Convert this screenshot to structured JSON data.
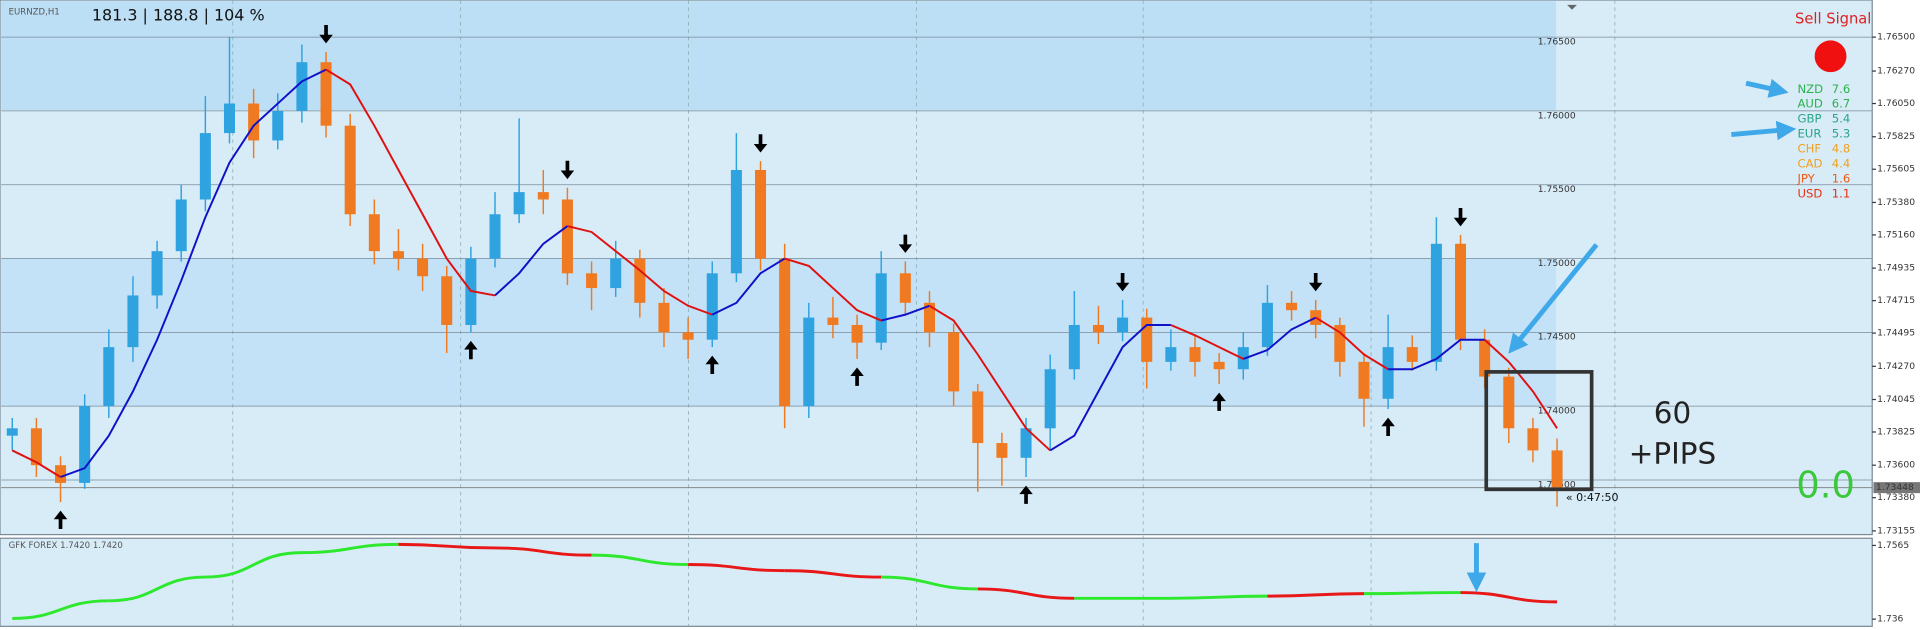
{
  "chart_data": {
    "type": "candlestick",
    "symbol": "EURNZD,H1",
    "stats": "181.3 | 188.8 | 104 %",
    "ylim": [
      1.7313,
      1.7671
    ],
    "yticks": [
      {
        "value": 1.765,
        "label": "1.76500"
      },
      {
        "value": 1.7627,
        "label": "1.76270"
      },
      {
        "value": 1.7605,
        "label": "1.76050"
      },
      {
        "value": 1.75825,
        "label": "1.75825"
      },
      {
        "value": 1.75605,
        "label": "1.75605"
      },
      {
        "value": 1.7538,
        "label": "1.75380"
      },
      {
        "value": 1.7516,
        "label": "1.75160"
      },
      {
        "value": 1.74935,
        "label": "1.74935"
      },
      {
        "value": 1.74715,
        "label": "1.74715"
      },
      {
        "value": 1.74495,
        "label": "1.74495"
      },
      {
        "value": 1.7427,
        "label": "1.74270"
      },
      {
        "value": 1.74045,
        "label": "1.74045"
      },
      {
        "value": 1.73825,
        "label": "1.73825"
      },
      {
        "value": 1.736,
        "label": "1.73600"
      },
      {
        "value": 1.7338,
        "label": "1.73380"
      },
      {
        "value": 1.73155,
        "label": "1.73155"
      }
    ],
    "levels": [
      {
        "value": 1.765,
        "label": "1.76500"
      },
      {
        "value": 1.76,
        "label": "1.76000"
      },
      {
        "value": 1.755,
        "label": "1.75500"
      },
      {
        "value": 1.75,
        "label": "1.75000"
      },
      {
        "value": 1.745,
        "label": "1.74500"
      },
      {
        "value": 1.74,
        "label": "1.74000"
      },
      {
        "value": 1.735,
        "label": "1.73500"
      }
    ],
    "up_color": "#2fa3e0",
    "down_color": "#f07a22",
    "ohlc": [
      [
        1.738,
        1.7392,
        1.737,
        1.7385
      ],
      [
        1.7385,
        1.7392,
        1.7352,
        1.736
      ],
      [
        1.736,
        1.7366,
        1.7335,
        1.7348
      ],
      [
        1.7348,
        1.7408,
        1.7344,
        1.74
      ],
      [
        1.74,
        1.7452,
        1.7392,
        1.744
      ],
      [
        1.744,
        1.7488,
        1.743,
        1.7475
      ],
      [
        1.7475,
        1.7512,
        1.7466,
        1.7505
      ],
      [
        1.7505,
        1.755,
        1.7498,
        1.754
      ],
      [
        1.754,
        1.761,
        1.7532,
        1.7585
      ],
      [
        1.7585,
        1.765,
        1.7578,
        1.7605
      ],
      [
        1.7605,
        1.7615,
        1.7568,
        1.758
      ],
      [
        1.758,
        1.7612,
        1.7574,
        1.76
      ],
      [
        1.76,
        1.7645,
        1.7592,
        1.7633
      ],
      [
        1.7633,
        1.764,
        1.7582,
        1.759
      ],
      [
        1.759,
        1.7598,
        1.7522,
        1.753
      ],
      [
        1.753,
        1.754,
        1.7496,
        1.7505
      ],
      [
        1.7505,
        1.752,
        1.7492,
        1.75
      ],
      [
        1.75,
        1.751,
        1.7478,
        1.7488
      ],
      [
        1.7488,
        1.7495,
        1.7436,
        1.7455
      ],
      [
        1.7455,
        1.7508,
        1.745,
        1.75
      ],
      [
        1.75,
        1.7545,
        1.7494,
        1.753
      ],
      [
        1.753,
        1.7595,
        1.7524,
        1.7545
      ],
      [
        1.7545,
        1.756,
        1.753,
        1.754
      ],
      [
        1.754,
        1.7548,
        1.7482,
        1.749
      ],
      [
        1.749,
        1.7498,
        1.7465,
        1.748
      ],
      [
        1.748,
        1.7512,
        1.7474,
        1.75
      ],
      [
        1.75,
        1.7506,
        1.746,
        1.747
      ],
      [
        1.747,
        1.748,
        1.744,
        1.745
      ],
      [
        1.745,
        1.746,
        1.7432,
        1.7445
      ],
      [
        1.7445,
        1.7498,
        1.744,
        1.749
      ],
      [
        1.749,
        1.7585,
        1.7484,
        1.756
      ],
      [
        1.756,
        1.7566,
        1.7492,
        1.75
      ],
      [
        1.75,
        1.751,
        1.7385,
        1.74
      ],
      [
        1.74,
        1.747,
        1.7392,
        1.746
      ],
      [
        1.746,
        1.7474,
        1.7446,
        1.7455
      ],
      [
        1.7455,
        1.7462,
        1.7432,
        1.7443
      ],
      [
        1.7443,
        1.7505,
        1.7438,
        1.749
      ],
      [
        1.749,
        1.7498,
        1.7462,
        1.747
      ],
      [
        1.747,
        1.7478,
        1.744,
        1.745
      ],
      [
        1.745,
        1.7456,
        1.74,
        1.741
      ],
      [
        1.741,
        1.7415,
        1.7342,
        1.7375
      ],
      [
        1.7375,
        1.7382,
        1.7346,
        1.7365
      ],
      [
        1.7365,
        1.7392,
        1.7352,
        1.7385
      ],
      [
        1.7385,
        1.7435,
        1.737,
        1.7425
      ],
      [
        1.7425,
        1.7478,
        1.7418,
        1.7455
      ],
      [
        1.7455,
        1.7468,
        1.7442,
        1.745
      ],
      [
        1.745,
        1.7472,
        1.7444,
        1.746
      ],
      [
        1.746,
        1.7466,
        1.7412,
        1.743
      ],
      [
        1.743,
        1.7452,
        1.7424,
        1.744
      ],
      [
        1.744,
        1.7448,
        1.742,
        1.743
      ],
      [
        1.743,
        1.7436,
        1.7415,
        1.7425
      ],
      [
        1.7425,
        1.745,
        1.7418,
        1.744
      ],
      [
        1.744,
        1.7482,
        1.7434,
        1.747
      ],
      [
        1.747,
        1.7478,
        1.7458,
        1.7465
      ],
      [
        1.7465,
        1.7472,
        1.7446,
        1.7455
      ],
      [
        1.7455,
        1.746,
        1.742,
        1.743
      ],
      [
        1.743,
        1.7436,
        1.7386,
        1.7405
      ],
      [
        1.7405,
        1.7462,
        1.7398,
        1.744
      ],
      [
        1.744,
        1.7448,
        1.7424,
        1.743
      ],
      [
        1.743,
        1.7528,
        1.7424,
        1.751
      ],
      [
        1.751,
        1.7516,
        1.7438,
        1.7445
      ],
      [
        1.7445,
        1.7452,
        1.7412,
        1.742
      ],
      [
        1.742,
        1.7426,
        1.7375,
        1.7385
      ],
      [
        1.7385,
        1.7392,
        1.7362,
        1.737
      ],
      [
        1.737,
        1.7378,
        1.7332,
        1.7345
      ]
    ],
    "ma": {
      "rise_color": "#1010c8",
      "fall_color": "#e01010",
      "values": [
        1.737,
        1.7362,
        1.7352,
        1.7358,
        1.738,
        1.741,
        1.7445,
        1.7485,
        1.7528,
        1.7565,
        1.759,
        1.7605,
        1.762,
        1.7628,
        1.7618,
        1.759,
        1.756,
        1.753,
        1.75,
        1.7478,
        1.7475,
        1.749,
        1.751,
        1.7522,
        1.7518,
        1.7505,
        1.7492,
        1.7478,
        1.7468,
        1.7462,
        1.747,
        1.749,
        1.75,
        1.7495,
        1.748,
        1.7465,
        1.7458,
        1.7462,
        1.7468,
        1.7458,
        1.7435,
        1.741,
        1.7385,
        1.737,
        1.738,
        1.741,
        1.744,
        1.7455,
        1.7455,
        1.7448,
        1.744,
        1.7432,
        1.7438,
        1.7452,
        1.746,
        1.745,
        1.7435,
        1.7425,
        1.7425,
        1.7432,
        1.7445,
        1.7445,
        1.743,
        1.741,
        1.7385
      ]
    },
    "signals": [
      {
        "index": 2,
        "dir": "up"
      },
      {
        "index": 13,
        "dir": "down"
      },
      {
        "index": 19,
        "dir": "up"
      },
      {
        "index": 23,
        "dir": "down"
      },
      {
        "index": 29,
        "dir": "up"
      },
      {
        "index": 31,
        "dir": "down"
      },
      {
        "index": 35,
        "dir": "up"
      },
      {
        "index": 37,
        "dir": "down"
      },
      {
        "index": 42,
        "dir": "up"
      },
      {
        "index": 46,
        "dir": "down"
      },
      {
        "index": 50,
        "dir": "up"
      },
      {
        "index": 54,
        "dir": "down"
      },
      {
        "index": 57,
        "dir": "up"
      },
      {
        "index": 60,
        "dir": "down"
      }
    ],
    "current_price": 1.73448,
    "timer": "« 0:47:50",
    "indicator": {
      "title": "GFK FOREX 1.7420 1.7420",
      "ylim": [
        1.734,
        1.7585
      ],
      "yticks": [
        1.7565,
        1.736
      ],
      "x": [
        0,
        4,
        8,
        12,
        16,
        20,
        24,
        28,
        32,
        36,
        40,
        44,
        48,
        52,
        56,
        60,
        64
      ],
      "values": [
        1.7362,
        1.7411,
        1.7477,
        1.7545,
        1.7568,
        1.7558,
        1.7538,
        1.7512,
        1.7495,
        1.7477,
        1.7444,
        1.7418,
        1.7418,
        1.7424,
        1.7431,
        1.7434,
        1.7408
      ],
      "colors": [
        "#2ee82e",
        "#2ee82e",
        "#2ee82e",
        "#2ee82e",
        "#e81818",
        "#e81818",
        "#2ee82e",
        "#e81818",
        "#e81818",
        "#2ee82e",
        "#e81818",
        "#2ee82e",
        "#2ee82e",
        "#e81818",
        "#2ee82e",
        "#e81818"
      ]
    },
    "signal_text": "Sell Signal",
    "strength": [
      {
        "name": "NZD",
        "value": 7.6,
        "color": "#2bb24c"
      },
      {
        "name": "AUD",
        "value": 6.7,
        "color": "#2bb24c"
      },
      {
        "name": "GBP",
        "value": 5.4,
        "color": "#2aa58a"
      },
      {
        "name": "EUR",
        "value": 5.3,
        "color": "#2aa58a"
      },
      {
        "name": "CHF",
        "value": 4.8,
        "color": "#f0a020"
      },
      {
        "name": "CAD",
        "value": 4.4,
        "color": "#f0a020"
      },
      {
        "name": "JPY",
        "value": 1.6,
        "color": "#f05a10"
      },
      {
        "name": "USD",
        "value": 1.1,
        "color": "#e83010"
      }
    ],
    "pips": 60,
    "pips_label": "+PIPS",
    "profit": "0.0"
  }
}
